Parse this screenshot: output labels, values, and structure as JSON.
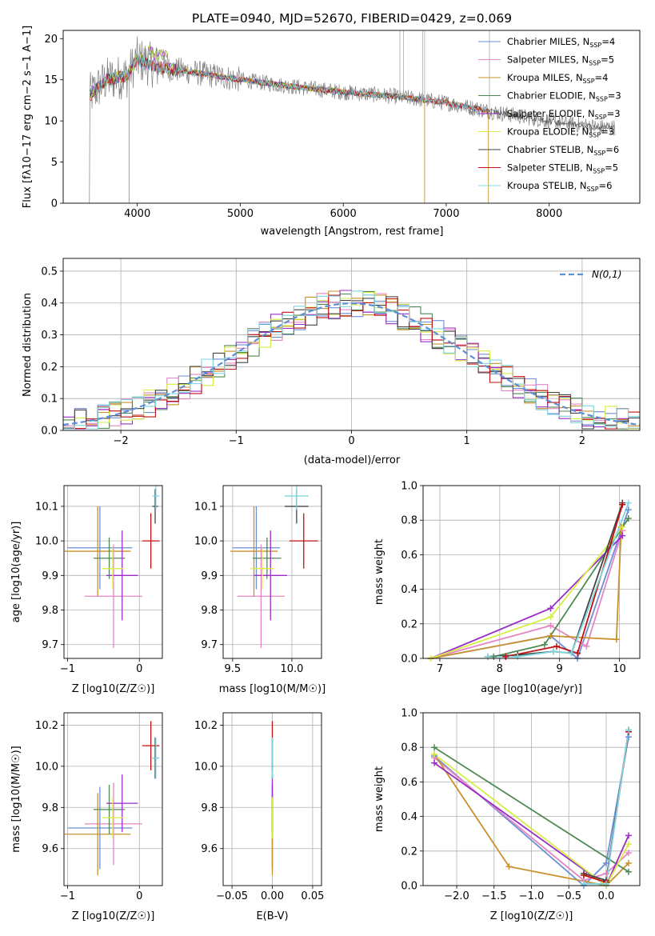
{
  "figure_title": "PLATE=0940, MJD=52670, FIBERID=0429, z=0.069",
  "colors": {
    "Chabrier MILES": "#6a8fd8",
    "Salpeter MILES": "#e586c4",
    "Kroupa MILES": "#c9912a",
    "Chabrier ELODIE": "#4f8a55",
    "Salpeter ELODIE": "#9a2ec7",
    "Kroupa ELODIE": "#d7ee44",
    "Chabrier STELIB": "#444444",
    "Salpeter STELIB": "#c11010",
    "Kroupa STELIB": "#7ed6e0",
    "gaussian": "#5b8fd6",
    "spectrum": "#808080"
  },
  "chart_data": [
    {
      "id": "spectrum",
      "type": "line",
      "title": "PLATE=0940, MJD=52670, FIBERID=0429, z=0.069",
      "xlabel": "wavelength [Angstrom, rest frame]",
      "ylabel": "Flux [fλ10−17 erg cm−2 s−1 A−1]",
      "xlim": [
        3280,
        8880
      ],
      "ylim": [
        0,
        21
      ],
      "xticks": [
        4000,
        5000,
        6000,
        7000,
        8000
      ],
      "yticks": [
        0,
        5,
        10,
        15,
        20
      ],
      "grid": false,
      "legend_position": "top-right",
      "legend": [
        "Chabrier MILES, N_SSP=4",
        "Salpeter MILES, N_SSP=5",
        "Kroupa MILES, N_SSP=4",
        "Chabrier ELODIE, N_SSP=3",
        "Salpeter ELODIE, N_SSP=3",
        "Kroupa ELODIE, N_SSP=3",
        "Chabrier STELIB, N_SSP=6",
        "Salpeter STELIB, N_SSP=5",
        "Kroupa STELIB, N_SSP=6"
      ],
      "continuum": {
        "x": [
          3530,
          3700,
          3900,
          4000,
          4200,
          4500,
          5000,
          5500,
          6000,
          6500,
          7000,
          7500,
          8000,
          8500
        ],
        "y": [
          13,
          15,
          15.5,
          17.5,
          16.5,
          16,
          15,
          14.2,
          13.5,
          13,
          12.2,
          11,
          10,
          9.2
        ]
      }
    },
    {
      "id": "residuals",
      "type": "line",
      "xlabel": "(data-model)/error",
      "ylabel": "Normed distribution",
      "xlim": [
        -2.5,
        2.5
      ],
      "ylim": [
        0,
        0.54
      ],
      "xticks": [
        -2,
        -1,
        0,
        1,
        2
      ],
      "yticks": [
        0.0,
        0.1,
        0.2,
        0.3,
        0.4,
        0.5
      ],
      "grid": true,
      "legend_position": "top-right",
      "legend": [
        "N(0,1)"
      ]
    },
    {
      "id": "age_vs_Z",
      "type": "scatter",
      "xlabel": "Z [log10(Z/Z☉)]",
      "ylabel": "age  [log10(age/yr)]",
      "xlim": [
        -1.05,
        0.32
      ],
      "ylim": [
        9.66,
        10.16
      ],
      "xticks": [
        -1,
        0
      ],
      "yticks": [
        9.7,
        9.8,
        9.9,
        10.0,
        10.1
      ],
      "grid": true,
      "points": [
        {
          "series": "Chabrier MILES",
          "x": -0.55,
          "xerr": 0.45,
          "y": 9.98,
          "yerr": 0.12
        },
        {
          "series": "Salpeter MILES",
          "x": -0.36,
          "xerr": 0.4,
          "y": 9.84,
          "yerr": 0.15
        },
        {
          "series": "Kroupa MILES",
          "x": -0.58,
          "xerr": 0.46,
          "y": 9.97,
          "yerr": 0.13
        },
        {
          "series": "Chabrier ELODIE",
          "x": -0.42,
          "xerr": 0.22,
          "y": 9.95,
          "yerr": 0.06
        },
        {
          "series": "Salpeter ELODIE",
          "x": -0.24,
          "xerr": 0.22,
          "y": 9.9,
          "yerr": 0.13
        },
        {
          "series": "Kroupa ELODIE",
          "x": -0.37,
          "xerr": 0.15,
          "y": 9.92,
          "yerr": 0.06
        },
        {
          "series": "Chabrier STELIB",
          "x": 0.22,
          "xerr": 0.04,
          "y": 10.1,
          "yerr": 0.05
        },
        {
          "series": "Salpeter STELIB",
          "x": 0.16,
          "xerr": 0.12,
          "y": 10.0,
          "yerr": 0.08
        },
        {
          "series": "Kroupa STELIB",
          "x": 0.23,
          "xerr": 0.05,
          "y": 10.13,
          "yerr": 0.04
        }
      ]
    },
    {
      "id": "age_vs_mass",
      "type": "scatter",
      "xlabel": "mass [log10(M/M☉)]",
      "ylabel": "",
      "xlim": [
        9.42,
        10.25
      ],
      "ylim": [
        9.66,
        10.16
      ],
      "xticks": [
        9.5,
        10.0
      ],
      "yticks": [
        9.7,
        9.8,
        9.9,
        10.0,
        10.1
      ],
      "grid": true,
      "points": [
        {
          "series": "Chabrier MILES",
          "x": 9.7,
          "xerr": 0.2,
          "y": 9.98,
          "yerr": 0.12
        },
        {
          "series": "Salpeter MILES",
          "x": 9.74,
          "xerr": 0.2,
          "y": 9.84,
          "yerr": 0.15
        },
        {
          "series": "Kroupa MILES",
          "x": 9.68,
          "xerr": 0.2,
          "y": 9.97,
          "yerr": 0.13
        },
        {
          "series": "Chabrier ELODIE",
          "x": 9.79,
          "xerr": 0.12,
          "y": 9.95,
          "yerr": 0.06
        },
        {
          "series": "Salpeter ELODIE",
          "x": 9.82,
          "xerr": 0.14,
          "y": 9.9,
          "yerr": 0.13
        },
        {
          "series": "Kroupa ELODIE",
          "x": 9.75,
          "xerr": 0.1,
          "y": 9.92,
          "yerr": 0.06
        },
        {
          "series": "Chabrier STELIB",
          "x": 10.04,
          "xerr": 0.1,
          "y": 10.1,
          "yerr": 0.05
        },
        {
          "series": "Salpeter STELIB",
          "x": 10.1,
          "xerr": 0.12,
          "y": 10.0,
          "yerr": 0.08
        },
        {
          "series": "Kroupa STELIB",
          "x": 10.04,
          "xerr": 0.1,
          "y": 10.13,
          "yerr": 0.04
        }
      ]
    },
    {
      "id": "weight_vs_age",
      "type": "line",
      "xlabel": "age  [log10(age/yr)]",
      "ylabel": "mass weight",
      "xlim": [
        6.72,
        10.34
      ],
      "ylim": [
        0,
        1.0
      ],
      "xticks": [
        7,
        8,
        9,
        10
      ],
      "yticks": [
        0.0,
        0.2,
        0.4,
        0.6,
        0.8,
        1.0
      ],
      "grid": true,
      "series": [
        {
          "name": "Chabrier MILES",
          "x": [
            6.85,
            8.85,
            9.3,
            10.15
          ],
          "y": [
            0.0,
            0.13,
            0.0,
            0.86
          ]
        },
        {
          "name": "Salpeter MILES",
          "x": [
            6.85,
            8.85,
            9.45,
            10.05
          ],
          "y": [
            0.0,
            0.19,
            0.07,
            0.74
          ]
        },
        {
          "name": "Kroupa MILES",
          "x": [
            6.85,
            8.85,
            9.95,
            10.03
          ],
          "y": [
            0.0,
            0.13,
            0.11,
            0.76
          ]
        },
        {
          "name": "Chabrier ELODIE",
          "x": [
            7.9,
            8.75,
            10.15
          ],
          "y": [
            0.01,
            0.08,
            0.81
          ]
        },
        {
          "name": "Salpeter ELODIE",
          "x": [
            6.85,
            8.85,
            10.05
          ],
          "y": [
            0.0,
            0.29,
            0.71
          ]
        },
        {
          "name": "Kroupa ELODIE",
          "x": [
            6.85,
            8.85,
            10.05
          ],
          "y": [
            0.0,
            0.24,
            0.76
          ]
        },
        {
          "name": "Chabrier STELIB",
          "x": [
            7.8,
            8.3,
            8.9,
            9.2,
            10.05
          ],
          "y": [
            0.01,
            0.02,
            0.04,
            0.03,
            0.9
          ]
        },
        {
          "name": "Salpeter STELIB",
          "x": [
            8.1,
            8.95,
            9.3,
            10.05
          ],
          "y": [
            0.01,
            0.07,
            0.03,
            0.89
          ]
        },
        {
          "name": "Kroupa STELIB",
          "x": [
            7.8,
            8.3,
            8.9,
            9.2,
            10.15
          ],
          "y": [
            0.01,
            0.01,
            0.04,
            0.03,
            0.9
          ]
        }
      ]
    },
    {
      "id": "mass_vs_Z",
      "type": "scatter",
      "xlabel": "Z [log10(Z/Z☉)]",
      "ylabel": "mass [log10(M/M☉)]",
      "xlim": [
        -1.05,
        0.32
      ],
      "ylim": [
        9.42,
        10.26
      ],
      "xticks": [
        -1,
        0
      ],
      "yticks": [
        9.6,
        9.8,
        10.0,
        10.2
      ],
      "grid": true,
      "points": [
        {
          "series": "Chabrier MILES",
          "x": -0.55,
          "xerr": 0.45,
          "y": 9.7,
          "yerr": 0.2
        },
        {
          "series": "Salpeter MILES",
          "x": -0.36,
          "xerr": 0.4,
          "y": 9.72,
          "yerr": 0.2
        },
        {
          "series": "Kroupa MILES",
          "x": -0.58,
          "xerr": 0.46,
          "y": 9.67,
          "yerr": 0.2
        },
        {
          "series": "Chabrier ELODIE",
          "x": -0.42,
          "xerr": 0.22,
          "y": 9.79,
          "yerr": 0.12
        },
        {
          "series": "Salpeter ELODIE",
          "x": -0.24,
          "xerr": 0.22,
          "y": 9.82,
          "yerr": 0.14
        },
        {
          "series": "Kroupa ELODIE",
          "x": -0.37,
          "xerr": 0.15,
          "y": 9.75,
          "yerr": 0.1
        },
        {
          "series": "Chabrier STELIB",
          "x": 0.22,
          "xerr": 0.04,
          "y": 10.04,
          "yerr": 0.1
        },
        {
          "series": "Salpeter STELIB",
          "x": 0.16,
          "xerr": 0.12,
          "y": 10.1,
          "yerr": 0.12
        },
        {
          "series": "Kroupa STELIB",
          "x": 0.23,
          "xerr": 0.05,
          "y": 10.04,
          "yerr": 0.1
        }
      ]
    },
    {
      "id": "mass_vs_EBV",
      "type": "scatter",
      "xlabel": "E(B-V)",
      "ylabel": "",
      "xlim": [
        -0.061,
        0.061
      ],
      "ylim": [
        9.42,
        10.26
      ],
      "xticks": [
        -0.05,
        0.0,
        0.05
      ],
      "yticks": [
        9.6,
        9.8,
        10.0,
        10.2
      ],
      "grid": true,
      "points": [
        {
          "series": "Chabrier MILES",
          "x": 0.0,
          "xerr": 0.0,
          "y": 9.7,
          "yerr": 0.2
        },
        {
          "series": "Salpeter MILES",
          "x": 0.0,
          "xerr": 0.0,
          "y": 9.72,
          "yerr": 0.2
        },
        {
          "series": "Kroupa MILES",
          "x": 0.0,
          "xerr": 0.0,
          "y": 9.67,
          "yerr": 0.2
        },
        {
          "series": "Chabrier ELODIE",
          "x": 0.0,
          "xerr": 0.0,
          "y": 9.79,
          "yerr": 0.12
        },
        {
          "series": "Salpeter ELODIE",
          "x": 0.0,
          "xerr": 0.0,
          "y": 9.82,
          "yerr": 0.14
        },
        {
          "series": "Kroupa ELODIE",
          "x": 0.0,
          "xerr": 0.0,
          "y": 9.75,
          "yerr": 0.1
        },
        {
          "series": "Chabrier STELIB",
          "x": 0.0,
          "xerr": 0.0,
          "y": 10.04,
          "yerr": 0.1
        },
        {
          "series": "Salpeter STELIB",
          "x": 0.0,
          "xerr": 0.0,
          "y": 10.1,
          "yerr": 0.12
        },
        {
          "series": "Kroupa STELIB",
          "x": 0.0,
          "xerr": 0.0,
          "y": 10.04,
          "yerr": 0.1
        }
      ]
    },
    {
      "id": "weight_vs_Z",
      "type": "line",
      "xlabel": "Z [log10(Z/Z☉)]",
      "ylabel": "mass weight",
      "xlim": [
        -2.45,
        0.45
      ],
      "ylim": [
        0,
        1.0
      ],
      "xticks": [
        -2.0,
        -1.5,
        -1.0,
        -0.5,
        0.0
      ],
      "yticks": [
        0.0,
        0.2,
        0.4,
        0.6,
        0.8,
        1.0
      ],
      "grid": true,
      "series": [
        {
          "name": "Chabrier MILES",
          "x": [
            -2.3,
            -0.3,
            0.0,
            0.3
          ],
          "y": [
            0.75,
            0.0,
            0.13,
            0.86
          ]
        },
        {
          "name": "Salpeter MILES",
          "x": [
            -2.3,
            -0.3,
            0.0,
            0.3
          ],
          "y": [
            0.74,
            0.03,
            0.07,
            0.19
          ]
        },
        {
          "name": "Kroupa MILES",
          "x": [
            -2.3,
            -1.3,
            0.0,
            0.3
          ],
          "y": [
            0.76,
            0.11,
            0.0,
            0.13
          ]
        },
        {
          "name": "Chabrier ELODIE",
          "x": [
            -2.3,
            0.3
          ],
          "y": [
            0.8,
            0.08
          ]
        },
        {
          "name": "Salpeter ELODIE",
          "x": [
            -2.3,
            0.0,
            0.3
          ],
          "y": [
            0.71,
            0.0,
            0.29
          ]
        },
        {
          "name": "Kroupa ELODIE",
          "x": [
            -2.3,
            0.0,
            0.3
          ],
          "y": [
            0.76,
            0.0,
            0.24
          ]
        },
        {
          "name": "Chabrier STELIB",
          "x": [
            -0.3,
            0.0,
            0.3
          ],
          "y": [
            0.07,
            0.03,
            0.9
          ]
        },
        {
          "name": "Salpeter STELIB",
          "x": [
            -0.3,
            0.0,
            0.3
          ],
          "y": [
            0.06,
            0.02,
            0.89
          ]
        },
        {
          "name": "Kroupa STELIB",
          "x": [
            -0.3,
            0.0,
            0.3
          ],
          "y": [
            0.01,
            0.01,
            0.9
          ]
        }
      ]
    }
  ]
}
